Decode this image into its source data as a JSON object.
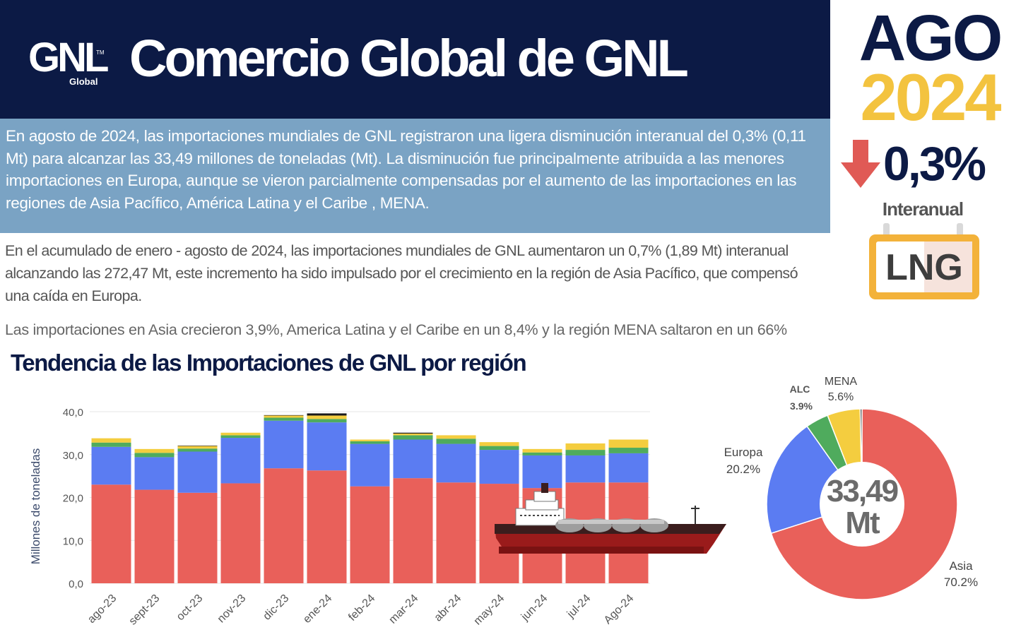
{
  "header": {
    "title": "Comercio Global de GNL",
    "logo_text": "GNL",
    "logo_sub": "Global",
    "logo_tm": "TM"
  },
  "side": {
    "month": "AGO",
    "year": "2024",
    "change": "0,3%",
    "change_label": "Interanual",
    "icon_label": "LNG",
    "icons": [
      "down-arrow-icon",
      "lng-sign-icon"
    ]
  },
  "summary": "En agosto de 2024, las importaciones mundiales de GNL registraron una ligera disminución interanual del 0,3% (0,11 Mt) para alcanzar  las 33,49 millones de toneladas (Mt). La disminución fue principalmente atribuida a las menores importaciones en Europa, aunque se vieron parcialmente compensadas por el aumento de las importaciones en las regiones de Asia Pacífico, América Latina y el Caribe , MENA.",
  "paragraph2": "En el acumulado de  enero - agosto de 2024, las importaciones mundiales de GNL aumentaron un 0,7% (1,89 Mt) interanual alcanzando las 272,47 Mt, este incremento  ha sido impulsado por el crecimiento en la región de Asia Pacífico, que compensó una caída en Europa.",
  "paragraph3": "Las importaciones en Asia crecieron 3,9%, America Latina y el Caribe en un 8,4% y la región MENA saltaron en un 66%",
  "colors": {
    "navy": "#0c1a45",
    "gold": "#f3c33f",
    "asia": "#e9605a",
    "europa": "#5b7cf2",
    "alc": "#4fab5d",
    "mena": "#f4cd3f",
    "other": "#1a1a1a"
  },
  "chart_data": [
    {
      "type": "bar",
      "stacked": true,
      "title": "Tendencia de las Importaciones  de GNL  por región",
      "ylabel": "Millones de toneladas",
      "ylim": [
        0,
        40
      ],
      "yticks": [
        "0,0",
        "10,0",
        "20,0",
        "30,0",
        "40,0"
      ],
      "grid": true,
      "categories": [
        "ago-23",
        "sept-23",
        "oct-23",
        "nov-23",
        "dic-23",
        "ene-24",
        "feb-24",
        "mar-24",
        "abr-24",
        "may-24",
        "jun-24",
        "jul-24",
        "Ago-24"
      ],
      "series": [
        {
          "key": "asia",
          "values": [
            23.0,
            21.8,
            21.1,
            23.3,
            26.8,
            26.3,
            22.6,
            24.5,
            23.5,
            23.2,
            22.2,
            23.5,
            23.5
          ]
        },
        {
          "key": "europa",
          "values": [
            8.8,
            7.6,
            9.6,
            10.6,
            11.1,
            11.2,
            9.9,
            9.0,
            9.0,
            7.9,
            7.6,
            6.3,
            6.8
          ]
        },
        {
          "key": "alc",
          "values": [
            1.0,
            1.0,
            0.7,
            0.6,
            0.7,
            0.8,
            0.6,
            1.0,
            1.2,
            0.9,
            0.7,
            1.3,
            1.3
          ]
        },
        {
          "key": "mena",
          "values": [
            1.0,
            0.9,
            0.6,
            0.6,
            0.5,
            0.8,
            0.4,
            0.4,
            0.8,
            0.9,
            0.8,
            1.5,
            1.9
          ]
        },
        {
          "key": "other",
          "values": [
            0,
            0,
            0.1,
            0,
            0.1,
            0.5,
            0,
            0.2,
            0,
            0,
            0,
            0,
            0
          ]
        }
      ]
    },
    {
      "type": "pie",
      "donut": true,
      "center_value": "33,49",
      "center_unit": "Mt",
      "slices": [
        {
          "label": "Asia",
          "pct": "70.2%",
          "value": 70.2,
          "key": "asia"
        },
        {
          "label": "Europa",
          "pct": "20.2%",
          "value": 20.2,
          "key": "europa"
        },
        {
          "label": "ALC",
          "pct": "3.9%",
          "value": 3.9,
          "key": "alc"
        },
        {
          "label": "MENA",
          "pct": "5.6%",
          "value": 5.6,
          "key": "mena"
        },
        {
          "label": "",
          "pct": "",
          "value": 0.3,
          "key": "other"
        }
      ]
    }
  ]
}
